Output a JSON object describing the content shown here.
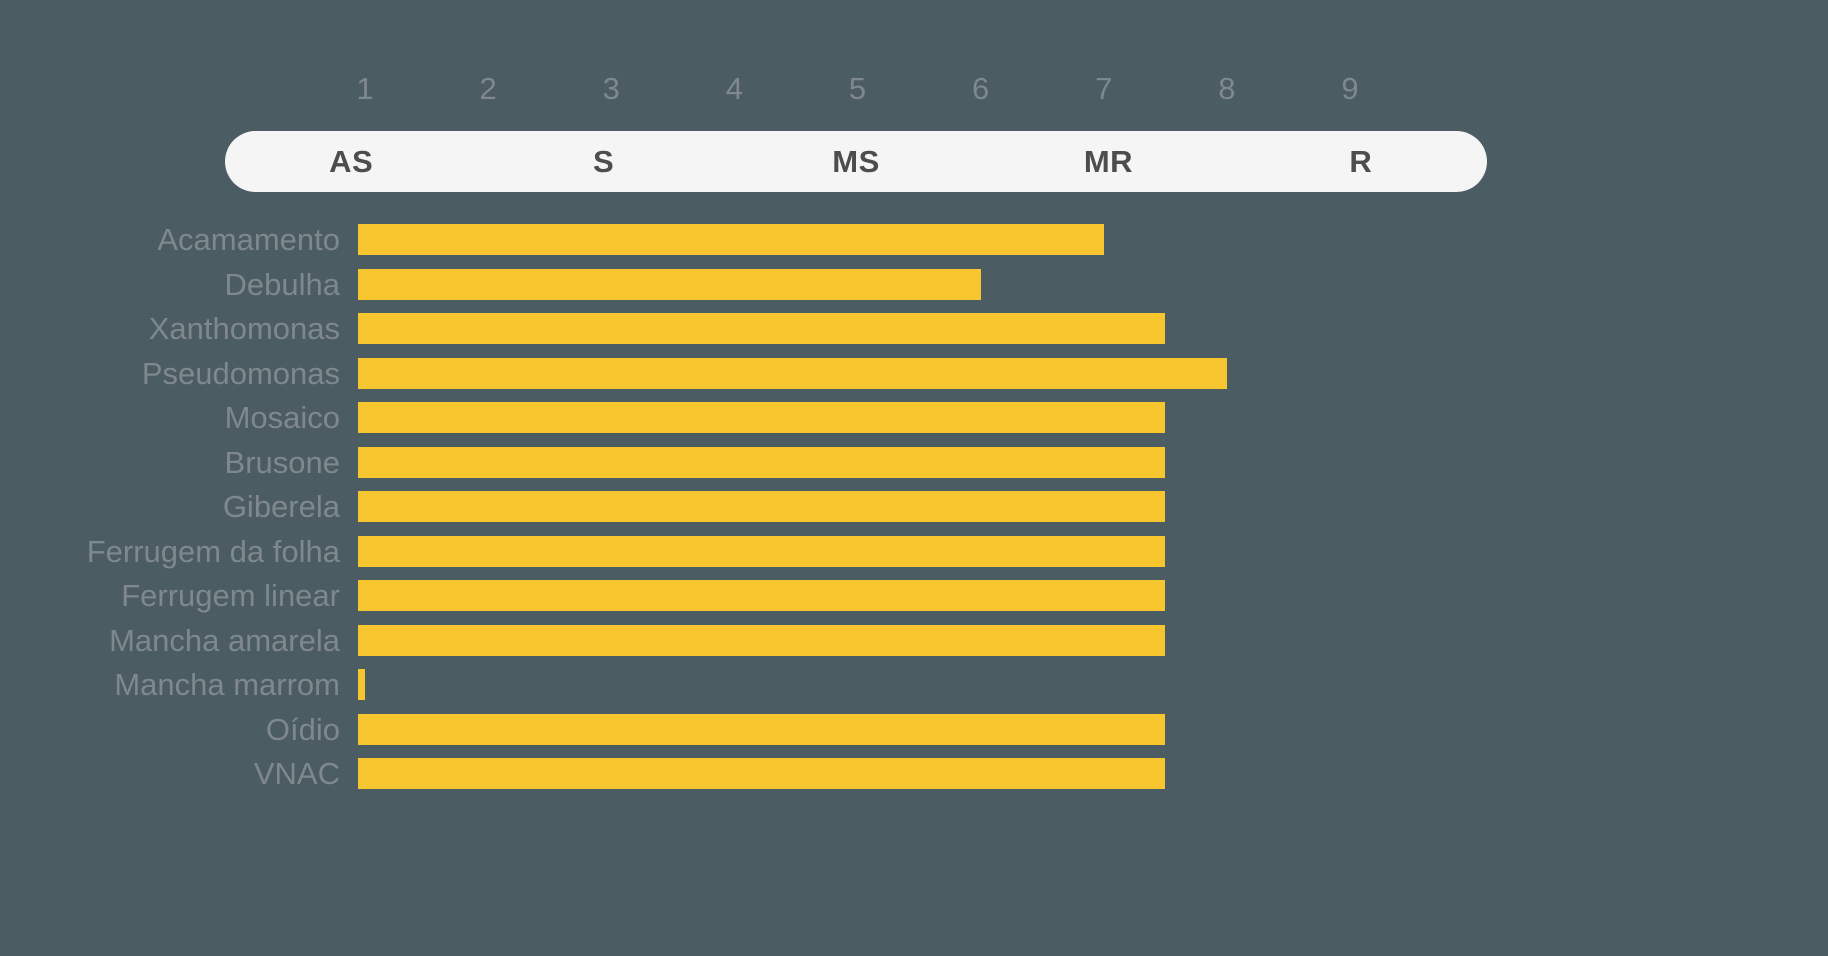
{
  "chart_data": {
    "type": "bar",
    "orientation": "horizontal",
    "title": "",
    "xlabel": "",
    "ylabel": "",
    "xlim": [
      1,
      9
    ],
    "x_ticks": [
      1,
      2,
      3,
      4,
      5,
      6,
      7,
      8,
      9
    ],
    "scale_labels": [
      "AS",
      "S",
      "MS",
      "MR",
      "R"
    ],
    "categories": [
      "Acamamento",
      "Debulha",
      "Xanthomonas",
      "Pseudomonas",
      "Mosaico",
      "Brusone",
      "Giberela",
      "Ferrugem da folha",
      "Ferrugem linear",
      "Mancha amarela",
      "Mancha marrom",
      "Oídio",
      "VNAC"
    ],
    "values": [
      7,
      6,
      7.5,
      8,
      7.5,
      7.5,
      7.5,
      7.5,
      7.5,
      7.5,
      1,
      7.5,
      7.5
    ],
    "grid": false,
    "legend": false,
    "colors": {
      "background": "#4B5C63",
      "bar": "#F7C52D",
      "labels": "#7E888D",
      "scale_band_background": "#F5F5F5",
      "scale_band_text": "#4D4D4D"
    }
  }
}
